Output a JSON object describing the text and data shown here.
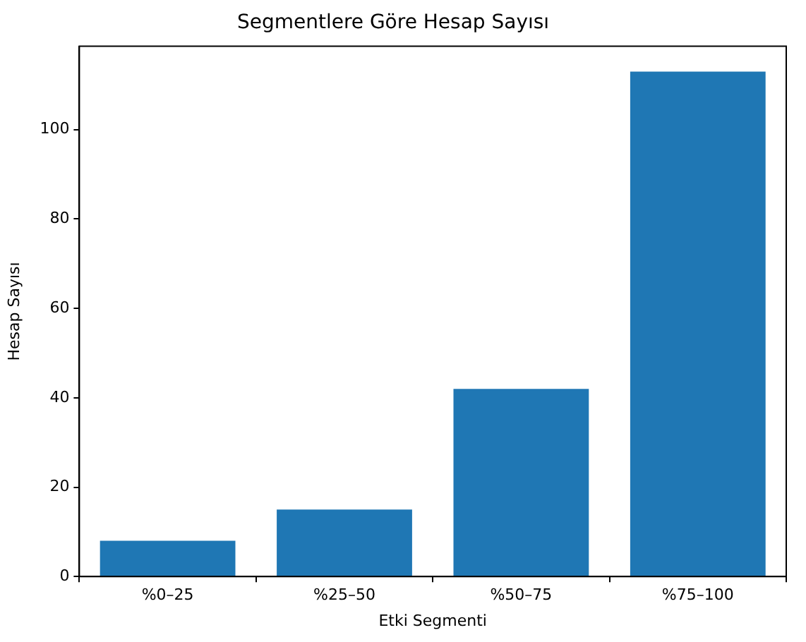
{
  "chart_data": {
    "type": "bar",
    "title": "Segmentlere Göre Hesap Sayısı",
    "xlabel": "Etki Segmenti",
    "ylabel": "Hesap Sayısı",
    "categories": [
      "%0–25",
      "%25–50",
      "%50–75",
      "%75–100"
    ],
    "values": [
      8,
      15,
      42,
      113
    ],
    "color": "#1f77b4",
    "ylim": [
      0,
      118.65
    ],
    "yticks": [
      0,
      20,
      40,
      60,
      80,
      100
    ],
    "grid": false,
    "legend": false
  }
}
